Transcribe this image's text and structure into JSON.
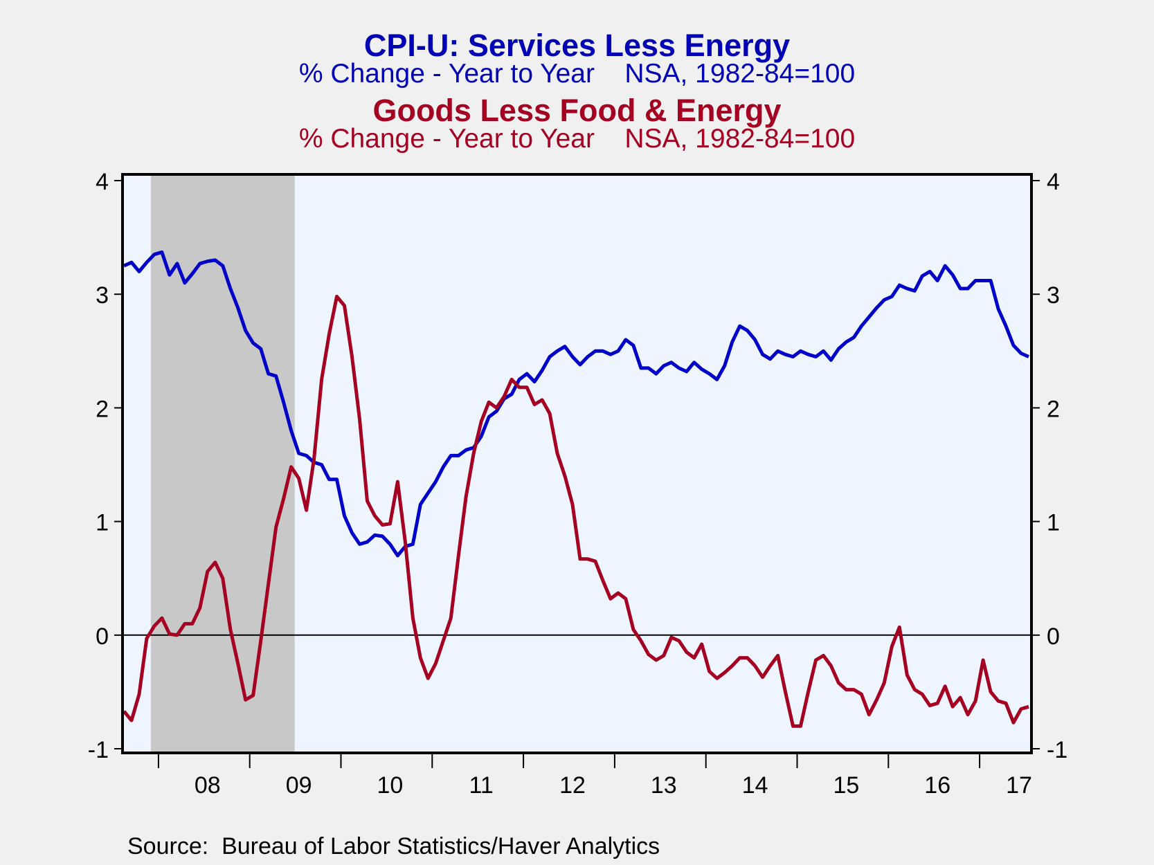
{
  "chart_data": {
    "type": "line",
    "title": "CPI-U: Services Less Energy",
    "subtitle": "% Change - Year to Year    NSA, 1982-84=100",
    "title2": "Goods Less Food & Energy",
    "subtitle2": "% Change - Year to Year    NSA, 1982-84=100",
    "source": "Source:  Bureau of Labor Statistics/Haver Analytics",
    "xlabel": "",
    "ylabel": "",
    "frequency": "monthly",
    "start": "2007-08",
    "end": "2017-07",
    "ylim": [
      -1,
      4
    ],
    "yticks": [
      4,
      3,
      2,
      1,
      0,
      -1
    ],
    "ytick_labels": [
      "4",
      "3",
      "2",
      "1",
      "0",
      "-1"
    ],
    "xtick_labels": [
      "08",
      "09",
      "10",
      "11",
      "12",
      "13",
      "14",
      "15",
      "16",
      "17"
    ],
    "zero_line": true,
    "grid": false,
    "shaded_regions": [
      {
        "label": "recession",
        "start": "2007-12",
        "end": "2009-06",
        "color": "#c8c8c8"
      }
    ],
    "colors": {
      "background": "#f0f0f0",
      "plot_background": "#eef5ff"
    },
    "series": [
      {
        "name": "CPI-U: Services Less Energy",
        "color": "#0000c8",
        "axis": "left",
        "values": [
          3.25,
          3.28,
          3.2,
          3.28,
          3.35,
          3.37,
          3.17,
          3.27,
          3.1,
          3.18,
          3.27,
          3.29,
          3.3,
          3.25,
          3.05,
          2.88,
          2.68,
          2.57,
          2.52,
          2.3,
          2.28,
          2.05,
          1.8,
          1.6,
          1.58,
          1.52,
          1.5,
          1.37,
          1.37,
          1.05,
          0.9,
          0.8,
          0.82,
          0.88,
          0.87,
          0.8,
          0.7,
          0.78,
          0.8,
          1.15,
          1.25,
          1.35,
          1.48,
          1.58,
          1.58,
          1.63,
          1.65,
          1.75,
          1.92,
          1.97,
          2.08,
          2.12,
          2.25,
          2.3,
          2.23,
          2.33,
          2.45,
          2.5,
          2.54,
          2.45,
          2.38,
          2.45,
          2.5,
          2.5,
          2.47,
          2.5,
          2.6,
          2.55,
          2.35,
          2.35,
          2.3,
          2.37,
          2.4,
          2.35,
          2.32,
          2.4,
          2.34,
          2.3,
          2.25,
          2.37,
          2.58,
          2.72,
          2.68,
          2.6,
          2.47,
          2.43,
          2.5,
          2.47,
          2.45,
          2.5,
          2.47,
          2.45,
          2.5,
          2.42,
          2.52,
          2.58,
          2.62,
          2.72,
          2.8,
          2.88,
          2.95,
          2.98,
          3.08,
          3.05,
          3.03,
          3.16,
          3.2,
          3.12,
          3.25,
          3.17,
          3.05,
          3.05,
          3.12,
          3.12,
          3.12,
          2.87,
          2.72,
          2.55,
          2.48,
          2.45
        ]
      },
      {
        "name": "Goods Less Food & Energy",
        "color": "#a50021",
        "axis": "left",
        "values": [
          -0.67,
          -0.75,
          -0.52,
          -0.03,
          0.08,
          0.15,
          0.01,
          0.0,
          0.1,
          0.1,
          0.24,
          0.56,
          0.64,
          0.5,
          0.05,
          -0.25,
          -0.57,
          -0.53,
          -0.05,
          0.45,
          0.95,
          1.2,
          1.48,
          1.38,
          1.1,
          1.55,
          2.25,
          2.65,
          2.98,
          2.9,
          2.45,
          1.9,
          1.18,
          1.05,
          0.97,
          0.98,
          1.35,
          0.82,
          0.15,
          -0.2,
          -0.38,
          -0.25,
          -0.05,
          0.15,
          0.7,
          1.22,
          1.6,
          1.88,
          2.05,
          2.0,
          2.1,
          2.25,
          2.18,
          2.18,
          2.03,
          2.07,
          1.95,
          1.6,
          1.4,
          1.15,
          0.67,
          0.67,
          0.65,
          0.48,
          0.32,
          0.37,
          0.32,
          0.05,
          -0.05,
          -0.17,
          -0.22,
          -0.18,
          -0.02,
          -0.05,
          -0.15,
          -0.2,
          -0.08,
          -0.32,
          -0.38,
          -0.33,
          -0.27,
          -0.2,
          -0.2,
          -0.27,
          -0.37,
          -0.27,
          -0.18,
          -0.5,
          -0.8,
          -0.8,
          -0.5,
          -0.22,
          -0.18,
          -0.27,
          -0.42,
          -0.48,
          -0.48,
          -0.52,
          -0.7,
          -0.57,
          -0.42,
          -0.1,
          0.07,
          -0.35,
          -0.48,
          -0.52,
          -0.62,
          -0.6,
          -0.45,
          -0.63,
          -0.55,
          -0.7,
          -0.58,
          -0.22,
          -0.5,
          -0.58,
          -0.6,
          -0.77,
          -0.65,
          -0.63
        ]
      }
    ]
  }
}
